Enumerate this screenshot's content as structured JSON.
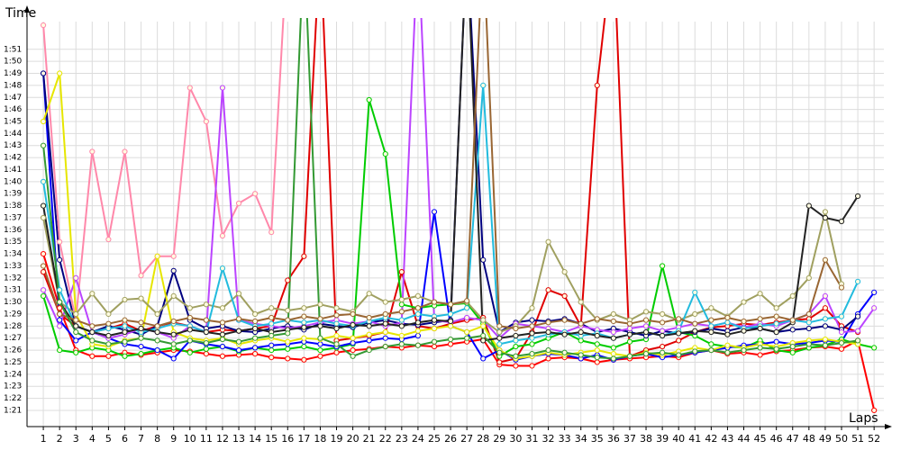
{
  "chart_data": {
    "type": "line",
    "y_label": "Time",
    "x_label": "Laps",
    "xlim": [
      0,
      52.6
    ],
    "ylim": [
      79.65,
      113.6
    ],
    "xticks": [
      1,
      2,
      3,
      4,
      5,
      6,
      7,
      8,
      9,
      10,
      11,
      12,
      13,
      14,
      15,
      16,
      17,
      18,
      19,
      20,
      21,
      22,
      23,
      24,
      25,
      26,
      27,
      28,
      29,
      30,
      31,
      32,
      33,
      34,
      35,
      36,
      37,
      38,
      39,
      40,
      41,
      42,
      43,
      44,
      45,
      46,
      47,
      48,
      49,
      50,
      51,
      52
    ],
    "yticks": [
      {
        "value": 81,
        "label": "1:21"
      },
      {
        "value": 82,
        "label": "1:22"
      },
      {
        "value": 83,
        "label": "1:23"
      },
      {
        "value": 84,
        "label": "1:24"
      },
      {
        "value": 85,
        "label": "1:25"
      },
      {
        "value": 86,
        "label": "1:26"
      },
      {
        "value": 87,
        "label": "1:27"
      },
      {
        "value": 88,
        "label": "1:28"
      },
      {
        "value": 89,
        "label": "1:29"
      },
      {
        "value": 90,
        "label": "1:30"
      },
      {
        "value": 91,
        "label": "1:31"
      },
      {
        "value": 92,
        "label": "1:32"
      },
      {
        "value": 93,
        "label": "1:33"
      },
      {
        "value": 94,
        "label": "1:34"
      },
      {
        "value": 95,
        "label": "1:35"
      },
      {
        "value": 96,
        "label": "1:36"
      },
      {
        "value": 97,
        "label": "1:37"
      },
      {
        "value": 98,
        "label": "1:38"
      },
      {
        "value": 99,
        "label": "1:39"
      },
      {
        "value": 100,
        "label": "1:40"
      },
      {
        "value": 101,
        "label": "1:41"
      },
      {
        "value": 102,
        "label": "1:42"
      },
      {
        "value": 103,
        "label": "1:43"
      },
      {
        "value": 104,
        "label": "1:44"
      },
      {
        "value": 105,
        "label": "1:45"
      },
      {
        "value": 106,
        "label": "1:46"
      },
      {
        "value": 107,
        "label": "1:47"
      },
      {
        "value": 108,
        "label": "1:48"
      },
      {
        "value": 109,
        "label": "1:49"
      },
      {
        "value": 110,
        "label": "1:50"
      },
      {
        "value": 111,
        "label": "1:51"
      }
    ],
    "grid": true,
    "x": [
      1,
      2,
      3,
      4,
      5,
      6,
      7,
      8,
      9,
      10,
      11,
      12,
      13,
      14,
      15,
      16,
      17,
      18,
      19,
      20,
      21,
      22,
      23,
      24,
      25,
      26,
      27,
      28,
      29,
      30,
      31,
      32,
      33,
      34,
      35,
      36,
      37,
      38,
      39,
      40,
      41,
      42,
      43,
      44,
      45,
      46,
      47,
      48,
      49,
      50,
      51,
      52
    ],
    "series": [
      {
        "color": "#ff0000",
        "values": [
          94,
          89.5,
          86,
          85.5,
          85.5,
          85.8,
          85.6,
          85.8,
          86,
          85.9,
          85.7,
          85.5,
          85.6,
          85.7,
          85.4,
          85.3,
          85.2,
          85.5,
          85.8,
          86,
          86.1,
          86.3,
          86.2,
          86.4,
          86.3,
          86.5,
          86.7,
          86.9,
          84.8,
          84.7,
          84.7,
          85.3,
          85.4,
          85.3,
          85,
          85.2,
          85.3,
          85.4,
          85.5,
          85.4,
          85.8,
          86,
          85.7,
          85.8,
          85.6,
          85.9,
          86,
          86.2,
          86.3,
          86.1,
          86.8,
          81
        ]
      },
      {
        "color": "#e00000",
        "values": [
          92.5,
          89,
          88,
          87.5,
          87.8,
          88.2,
          87.6,
          88,
          88.3,
          88,
          87.5,
          87.7,
          87.6,
          87.8,
          88,
          91.8,
          93.8,
          120,
          86.8,
          87,
          87.2,
          87.5,
          92.5,
          88,
          87.8,
          88.2,
          88.5,
          88.7,
          85,
          85.3,
          87.5,
          91,
          90.5,
          88,
          108,
          120,
          85.5,
          86,
          86.3,
          86.8,
          87.5,
          87.9,
          88,
          88.2,
          88.1,
          88.3,
          88.5,
          88.6,
          89.5,
          88,
          87.5,
          null
        ]
      },
      {
        "color": "#00cc00",
        "values": [
          90.5,
          86,
          85.8,
          86.2,
          86,
          85.5,
          85.7,
          86,
          86.2,
          85.8,
          86.1,
          86.3,
          85.9,
          86.2,
          86,
          86.1,
          86.3,
          86,
          86.2,
          86.5,
          106.8,
          102.3,
          89.8,
          89.5,
          89.7,
          89.8,
          89.9,
          88.2,
          85.5,
          86.3,
          86.5,
          87,
          87.5,
          86.8,
          86.5,
          86.2,
          86.7,
          86.9,
          93,
          87.5,
          87.2,
          86.5,
          86.3,
          86.2,
          86.8,
          86,
          85.8,
          86.2,
          86.4,
          86.9,
          86.5,
          86.2
        ]
      },
      {
        "color": "#0000ff",
        "values": [
          109,
          88.5,
          86.8,
          87.5,
          87,
          86.5,
          86.3,
          86,
          85.3,
          86.8,
          86.5,
          86.3,
          86,
          86.2,
          86.4,
          86.5,
          86.7,
          86.5,
          86.3,
          86.6,
          86.8,
          87,
          86.9,
          87.2,
          97.5,
          88,
          87.5,
          85.3,
          86,
          85.2,
          85.5,
          85.7,
          85.6,
          85.3,
          85.6,
          85.2,
          85.5,
          85.7,
          85.4,
          85.6,
          85.8,
          86,
          86.2,
          86.4,
          86.5,
          86.7,
          86.5,
          86.6,
          86.8,
          86.7,
          89,
          90.8
        ]
      },
      {
        "color": "#000080",
        "values": [
          109,
          93.5,
          88,
          87.5,
          88,
          87.7,
          87.3,
          88,
          92.6,
          88.5,
          87.8,
          88,
          87.6,
          87.5,
          87.8,
          88,
          87.7,
          88.2,
          88,
          87.9,
          88.3,
          88.5,
          88.2,
          88.1,
          88.3,
          88.5,
          120,
          93.5,
          87.5,
          88.3,
          88.5,
          88.4,
          88.6,
          88.2,
          87.5,
          87.8,
          87.5,
          87.2,
          87.6,
          87.4,
          87.5,
          87.8,
          87.6,
          87.9,
          87.8,
          87.5,
          87.7,
          87.8,
          88,
          87.7,
          88.8,
          null
        ]
      },
      {
        "color": "#ff88aa",
        "values": [
          113,
          95,
          88.5,
          102.5,
          95.2,
          102.5,
          92.2,
          93.8,
          93.8,
          107.8,
          105,
          95.5,
          98.2,
          99,
          95.8,
          120,
          null,
          null,
          null,
          null,
          null,
          null,
          null,
          null,
          null,
          null,
          null,
          null,
          null,
          null,
          null,
          null,
          null,
          null,
          null,
          null,
          null,
          null,
          null,
          null,
          null,
          null,
          null,
          null,
          null,
          null,
          null,
          null,
          null,
          null,
          null,
          null
        ]
      },
      {
        "color": "#bb44ff",
        "values": [
          91,
          88,
          92,
          87.5,
          87,
          87.3,
          87.8,
          87.5,
          87,
          88,
          87.5,
          107.8,
          88.5,
          88.2,
          88,
          87.8,
          88,
          88.3,
          88.5,
          88.2,
          88.4,
          88,
          88.3,
          120,
          88.5,
          88.3,
          88.7,
          88.5,
          87,
          88.2,
          88,
          87.8,
          87.5,
          88,
          87.7,
          87.5,
          87.8,
          88,
          87.6,
          87.9,
          88.2,
          88,
          88.3,
          87.9,
          88.2,
          88,
          88.5,
          89,
          90.5,
          87.5,
          87.6,
          89.5
        ]
      },
      {
        "color": "#e6e600",
        "values": [
          105,
          109,
          89,
          86.5,
          86.3,
          86.8,
          87,
          93.8,
          87.5,
          87,
          86.8,
          87,
          86.5,
          86.8,
          87,
          86.7,
          87,
          86.9,
          87.2,
          87,
          87.3,
          87.5,
          87.2,
          87.6,
          87.8,
          88,
          87.5,
          88,
          86,
          85.3,
          85.5,
          85.8,
          85.6,
          85.8,
          86,
          85.7,
          85.5,
          85.8,
          85.6,
          85.9,
          86.2,
          86,
          86.4,
          86.2,
          86.5,
          86.3,
          86.6,
          86.8,
          86.9,
          86.7,
          86.5,
          null
        ]
      },
      {
        "color": "#a0a060",
        "values": [
          97,
          90,
          89,
          90.7,
          89,
          90.2,
          90.3,
          89,
          90.5,
          89.5,
          89.8,
          89.5,
          90.7,
          89,
          89.5,
          89.3,
          89.5,
          89.8,
          89.5,
          89.2,
          90.7,
          90,
          90.2,
          90.5,
          90,
          89.8,
          90,
          88.5,
          87.5,
          88,
          89.5,
          95,
          92.5,
          90,
          88.5,
          89,
          88.5,
          89.2,
          89,
          88.5,
          89,
          89.5,
          88.8,
          90,
          90.7,
          89.5,
          90.5,
          92,
          97.5,
          91.5,
          null,
          null
        ]
      },
      {
        "color": "#22bbdd",
        "values": [
          100,
          91,
          88,
          87.5,
          87.8,
          88,
          87.5,
          87.8,
          88.2,
          88,
          87.5,
          92.8,
          88.5,
          88,
          88.2,
          88.5,
          88.3,
          88.5,
          88.2,
          88,
          88.4,
          88.7,
          88.5,
          89,
          88.8,
          89,
          89.5,
          108,
          86.5,
          86.8,
          87,
          87.3,
          87.5,
          87.2,
          87.4,
          87,
          87.3,
          87.5,
          87.2,
          87.6,
          90.8,
          88,
          88.3,
          87.8,
          88,
          88.2,
          88.5,
          88.3,
          88.6,
          88.8,
          91.7,
          null
        ]
      },
      {
        "color": "#222222",
        "values": [
          98,
          90,
          88,
          87.5,
          87.2,
          87.5,
          87.8,
          87.5,
          87.3,
          87.7,
          87.5,
          87.3,
          87.6,
          87.8,
          87.5,
          87.7,
          87.9,
          88,
          87.8,
          88.1,
          88,
          88.2,
          88,
          88.3,
          88.5,
          88.4,
          120,
          86.8,
          87,
          87.2,
          87.4,
          87.5,
          87.3,
          87.5,
          87.2,
          87,
          87.3,
          87.5,
          87.2,
          87.4,
          87.6,
          87.5,
          87.3,
          87.6,
          87.8,
          87.5,
          88.3,
          98,
          97,
          96.7,
          98.8,
          null
        ]
      },
      {
        "color": "#996633",
        "values": [
          93,
          89,
          88.5,
          88,
          88.2,
          88.5,
          88.3,
          88,
          88.4,
          88.7,
          88.5,
          88.3,
          88.6,
          88.4,
          88.7,
          88.5,
          88.8,
          88.6,
          88.9,
          89,
          88.7,
          89,
          89.2,
          89.5,
          90,
          89.8,
          90.1,
          120,
          88,
          87.8,
          88,
          88.3,
          88.5,
          88.2,
          88.6,
          88.4,
          88.2,
          88.5,
          88.3,
          88.6,
          88.2,
          88.5,
          88.7,
          88.4,
          88.6,
          88.8,
          88.5,
          89,
          93.5,
          91.2,
          null,
          null
        ]
      },
      {
        "color": "#339933",
        "values": [
          103,
          90,
          87.5,
          86.8,
          86.5,
          86.7,
          87,
          86.8,
          86.5,
          86.8,
          86.6,
          86.9,
          86.7,
          87,
          87.2,
          87.4,
          120,
          87,
          86.5,
          85.5,
          86,
          86.3,
          86.5,
          86.4,
          86.7,
          86.9,
          87,
          87.2,
          85.8,
          85.5,
          85.7,
          86,
          85.8,
          85.6,
          85.4,
          85.3,
          85.5,
          85.7,
          85.8,
          85.6,
          85.9,
          86,
          85.8,
          86,
          86.2,
          86.1,
          86.3,
          86.5,
          86.4,
          86.6,
          86.8,
          null
        ]
      }
    ]
  }
}
